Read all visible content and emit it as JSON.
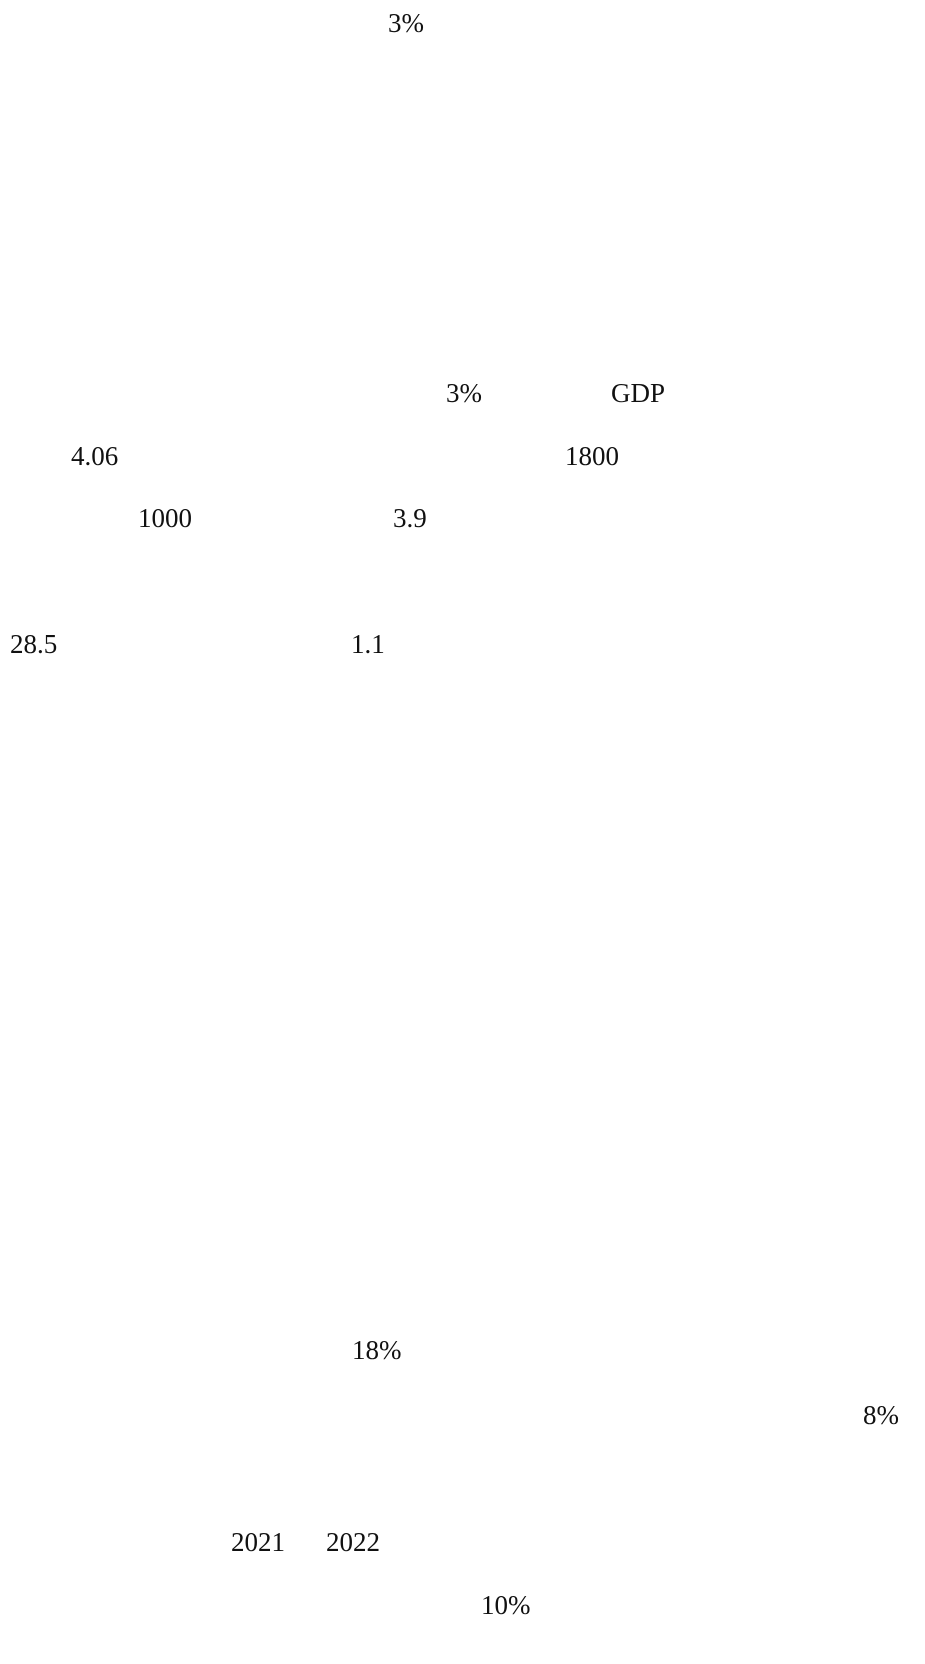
{
  "fragments": {
    "title_pct": "3%",
    "line1_pct": "3%",
    "line1_gdp": "GDP",
    "line2_a": "4.06",
    "line2_b": "1800",
    "line3_a": "1000",
    "line3_b": "3.9",
    "line4_a": "28.5",
    "line4_b": "1.1",
    "line5_pct": "18%",
    "line5_right_pct": "8%",
    "line6_year_a": "2021",
    "line6_year_b": "2022",
    "line7_pct": "10%"
  }
}
